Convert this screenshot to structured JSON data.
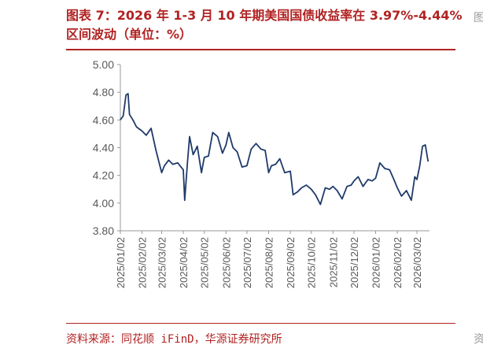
{
  "title": "图表 7：2026 年 1-3 月 10 年期美国国债收益率在 3.97%-4.44%区间波动（单位：%）",
  "source": "资料来源：同花顺 iFinD，华源证券研究所",
  "colors": {
    "accent": "#b22222",
    "series": "#1f3a6b",
    "axis": "#999999",
    "text": "#595959"
  },
  "chart_data": {
    "type": "line",
    "title": "",
    "xlabel": "",
    "ylabel": "",
    "ylim": [
      3.8,
      5.0
    ],
    "yticks": [
      "5.00",
      "4.80",
      "4.60",
      "4.40",
      "4.20",
      "4.00",
      "3.80"
    ],
    "xticks": [
      "2025/01/02",
      "2025/02/02",
      "2025/03/02",
      "2025/04/02",
      "2025/05/02",
      "2025/06/02",
      "2025/07/02",
      "2025/08/02",
      "2025/09/02",
      "2025/10/02",
      "2025/11/02",
      "2025/12/02",
      "2026/01/02",
      "2026/02/02",
      "2026/03/02"
    ],
    "grid": false,
    "legend": "none",
    "series": [
      {
        "x": [
          "2025/01/02",
          "2025/01/06",
          "2025/01/08",
          "2025/01/10",
          "2025/01/13",
          "2025/01/15",
          "2025/01/20",
          "2025/01/25",
          "2025/02/02",
          "2025/02/08",
          "2025/02/15",
          "2025/02/22",
          "2025/03/02",
          "2025/03/06",
          "2025/03/12",
          "2025/03/18",
          "2025/03/25",
          "2025/04/02",
          "2025/04/04",
          "2025/04/08",
          "2025/04/11",
          "2025/04/16",
          "2025/04/22",
          "2025/04/28",
          "2025/05/02",
          "2025/05/08",
          "2025/05/14",
          "2025/05/21",
          "2025/05/28",
          "2025/06/02",
          "2025/06/06",
          "2025/06/12",
          "2025/06/18",
          "2025/06/25",
          "2025/07/02",
          "2025/07/08",
          "2025/07/15",
          "2025/07/22",
          "2025/07/28",
          "2025/08/02",
          "2025/08/06",
          "2025/08/12",
          "2025/08/18",
          "2025/08/25",
          "2025/09/02",
          "2025/09/06",
          "2025/09/12",
          "2025/09/18",
          "2025/09/25",
          "2025/10/02",
          "2025/10/08",
          "2025/10/15",
          "2025/10/22",
          "2025/10/28",
          "2025/11/02",
          "2025/11/08",
          "2025/11/15",
          "2025/11/22",
          "2025/11/28",
          "2025/12/02",
          "2025/12/08",
          "2025/12/15",
          "2025/12/22",
          "2025/12/28",
          "2026/01/02",
          "2026/01/08",
          "2026/01/15",
          "2026/01/22",
          "2026/01/28",
          "2026/02/02",
          "2026/02/08",
          "2026/02/15",
          "2026/02/22",
          "2026/02/27",
          "2026/03/02",
          "2026/03/06",
          "2026/03/10",
          "2026/03/14",
          "2026/03/18"
        ],
        "values": [
          4.6,
          4.63,
          4.7,
          4.78,
          4.79,
          4.64,
          4.6,
          4.55,
          4.52,
          4.49,
          4.54,
          4.38,
          4.22,
          4.27,
          4.31,
          4.28,
          4.29,
          4.24,
          4.02,
          4.3,
          4.48,
          4.35,
          4.41,
          4.22,
          4.33,
          4.34,
          4.51,
          4.48,
          4.36,
          4.42,
          4.51,
          4.4,
          4.37,
          4.26,
          4.27,
          4.39,
          4.43,
          4.39,
          4.38,
          4.22,
          4.27,
          4.28,
          4.32,
          4.22,
          4.23,
          4.06,
          4.08,
          4.11,
          4.13,
          4.1,
          4.06,
          3.99,
          4.11,
          4.1,
          4.12,
          4.09,
          4.03,
          4.12,
          4.13,
          4.16,
          4.19,
          4.12,
          4.17,
          4.16,
          4.18,
          4.29,
          4.25,
          4.24,
          4.17,
          4.11,
          4.05,
          4.09,
          4.02,
          4.19,
          4.17,
          4.27,
          4.41,
          4.42,
          4.3
        ]
      }
    ]
  }
}
